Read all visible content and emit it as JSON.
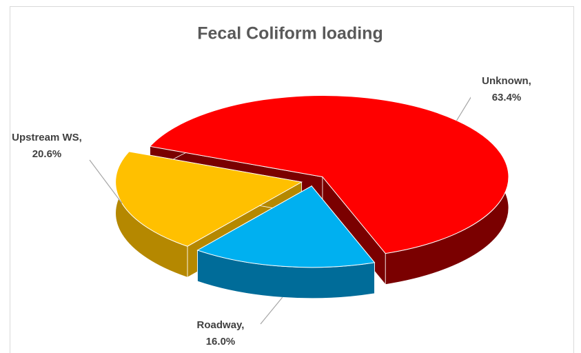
{
  "chart_data": {
    "type": "pie3d",
    "title": "Fecal Coliform loading",
    "categories": [
      "Unknown,",
      "Roadway,",
      "Upstream WS,"
    ],
    "values": [
      63.4,
      16.0,
      20.6
    ],
    "value_labels": [
      "63.4%",
      "16.0%",
      "20.6%"
    ],
    "colors": [
      "#ff0000",
      "#00b0f0",
      "#ffc000"
    ],
    "side_colors": [
      "#7a0000",
      "#006c99",
      "#b58800"
    ]
  }
}
